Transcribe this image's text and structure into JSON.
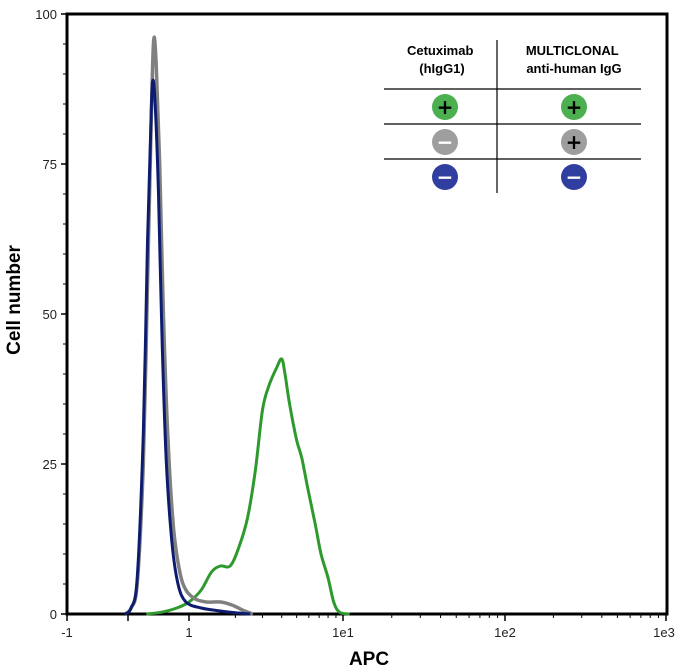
{
  "chart_data": {
    "type": "line",
    "title": "",
    "xlabel": "APC",
    "ylabel": "Cell number",
    "xscale": "biexponential",
    "x_ticks": [
      -1,
      0,
      1,
      10,
      100,
      1000
    ],
    "x_tick_labels": [
      "-1",
      "",
      "1",
      "1e1",
      "1e2",
      "1e3"
    ],
    "y_ticks": [
      0,
      25,
      50,
      75,
      100
    ],
    "y_tick_labels": [
      "0",
      "25",
      "50",
      "75",
      "100"
    ],
    "ylim": [
      0,
      100
    ],
    "legend": {
      "placement": "top-right",
      "columns": [
        "Cetuximab\n(hIgG1)",
        "MULTICLONAL\nanti-human IgG"
      ],
      "rows": [
        {
          "color": "#4caf50",
          "cetuximab": "+",
          "multiclonal": "+"
        },
        {
          "color": "#9e9e9e",
          "cetuximab": "−",
          "multiclonal": "+"
        },
        {
          "color": "#303f9f",
          "cetuximab": "−",
          "multiclonal": "−"
        }
      ]
    },
    "series": [
      {
        "name": "Cetuximab + / Multiclonal +",
        "color": "#2e9a2e",
        "points": [
          [
            0.3,
            0
          ],
          [
            0.55,
            0.3
          ],
          [
            0.8,
            1
          ],
          [
            1.0,
            2
          ],
          [
            1.2,
            4
          ],
          [
            1.4,
            7
          ],
          [
            1.6,
            8
          ],
          [
            1.85,
            8
          ],
          [
            2.1,
            11
          ],
          [
            2.4,
            16
          ],
          [
            2.7,
            24
          ],
          [
            3.0,
            34
          ],
          [
            3.3,
            38
          ],
          [
            3.7,
            41
          ],
          [
            4.0,
            42.5
          ],
          [
            4.2,
            40
          ],
          [
            4.5,
            35
          ],
          [
            5.0,
            29
          ],
          [
            5.4,
            26
          ],
          [
            5.9,
            21
          ],
          [
            6.6,
            15
          ],
          [
            7.2,
            10
          ],
          [
            8.0,
            6
          ],
          [
            8.7,
            2
          ],
          [
            9.5,
            0.3
          ],
          [
            11,
            0
          ]
        ]
      },
      {
        "name": "Cetuximab − / Multiclonal +",
        "color": "#808080",
        "points": [
          [
            -0.05,
            0
          ],
          [
            0.05,
            1
          ],
          [
            0.15,
            5
          ],
          [
            0.25,
            25
          ],
          [
            0.32,
            55
          ],
          [
            0.38,
            82
          ],
          [
            0.42,
            95.5
          ],
          [
            0.46,
            92
          ],
          [
            0.52,
            75
          ],
          [
            0.58,
            50
          ],
          [
            0.66,
            28
          ],
          [
            0.75,
            14
          ],
          [
            0.85,
            7
          ],
          [
            0.95,
            4
          ],
          [
            1.1,
            2.5
          ],
          [
            1.3,
            2
          ],
          [
            1.6,
            2
          ],
          [
            1.9,
            1.5
          ],
          [
            2.3,
            0.5
          ],
          [
            2.6,
            0
          ]
        ]
      },
      {
        "name": "Cetuximab − / Multiclonal −",
        "color": "#0d1c6f",
        "points": [
          [
            -0.05,
            0
          ],
          [
            0.05,
            1
          ],
          [
            0.15,
            6
          ],
          [
            0.25,
            30
          ],
          [
            0.32,
            62
          ],
          [
            0.37,
            80
          ],
          [
            0.4,
            88.5
          ],
          [
            0.44,
            86
          ],
          [
            0.5,
            70
          ],
          [
            0.56,
            45
          ],
          [
            0.63,
            25
          ],
          [
            0.72,
            12
          ],
          [
            0.82,
            5
          ],
          [
            0.95,
            2
          ],
          [
            1.2,
            1
          ],
          [
            1.6,
            0.5
          ],
          [
            2.0,
            0.2
          ],
          [
            2.5,
            0
          ]
        ]
      }
    ]
  }
}
